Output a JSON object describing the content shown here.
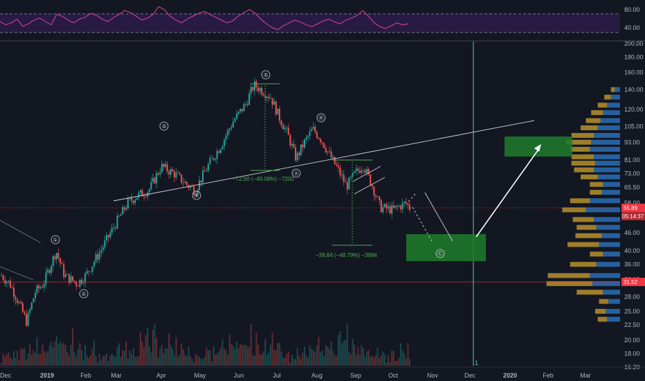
{
  "colors": {
    "background": "#131722",
    "up": "#26a69a",
    "down": "#ef5350",
    "rsi_line": "#e040a0",
    "rsi_band": "#3b1f5e",
    "volume_profile_up": "#2a6fb5",
    "volume_profile_down": "#b8902a",
    "target_box": "#1e7d2b",
    "annotation_text": "#4caf50",
    "price_tag": "#f23645"
  },
  "chart_data": [
    {
      "type": "line",
      "panel": "rsi",
      "y_ticks": [
        "80.00",
        "40.00"
      ],
      "levels": [
        70,
        30
      ],
      "ylim": [
        20,
        90
      ],
      "values": [
        55,
        48,
        52,
        60,
        45,
        50,
        58,
        62,
        55,
        48,
        70,
        66,
        58,
        52,
        60,
        64,
        72,
        68,
        60,
        55,
        63,
        70,
        78,
        74,
        66,
        58,
        62,
        70,
        86,
        80,
        66,
        58,
        52,
        60,
        66,
        72,
        76,
        70,
        64,
        58,
        52,
        56,
        66,
        74,
        80,
        72,
        60,
        50,
        42,
        38,
        46,
        52,
        58,
        54,
        48,
        44,
        50,
        56,
        60,
        54,
        50,
        58,
        62,
        68,
        78,
        66,
        52,
        44,
        40,
        46,
        52,
        48,
        50
      ]
    },
    {
      "type": "candlestick",
      "panel": "price",
      "scale": "log",
      "y_ticks": [
        "200.00",
        "180.00",
        "160.00",
        "140.00",
        "120.00",
        "105.00",
        "93.00",
        "81.00",
        "73.00",
        "65.50",
        "58.00",
        "52.00",
        "46.00",
        "40.00",
        "36.00",
        "32.00",
        "28.00",
        "25.00",
        "22.50",
        "20.00",
        "18.00",
        "16.20"
      ],
      "x_ticks": [
        "Dec",
        "2019",
        "Feb",
        "Mar",
        "Apr",
        "May",
        "Jun",
        "Jul",
        "Aug",
        "Sep",
        "Oct",
        "Nov",
        "Dec",
        "2020",
        "Feb",
        "Mar"
      ],
      "close_path": [
        [
          0,
          33
        ],
        [
          2,
          31
        ],
        [
          4,
          27
        ],
        [
          6,
          23
        ],
        [
          8,
          29
        ],
        [
          10,
          31
        ],
        [
          13,
          40
        ],
        [
          15,
          33
        ],
        [
          18,
          31
        ],
        [
          20,
          33
        ],
        [
          24,
          41
        ],
        [
          27,
          49
        ],
        [
          30,
          58
        ],
        [
          32,
          61
        ],
        [
          35,
          64
        ],
        [
          38,
          77
        ],
        [
          41,
          73
        ],
        [
          44,
          67
        ],
        [
          46,
          64
        ],
        [
          49,
          77
        ],
        [
          52,
          90
        ],
        [
          55,
          109
        ],
        [
          58,
          125
        ],
        [
          60,
          145
        ],
        [
          62,
          139
        ],
        [
          64,
          132
        ],
        [
          66,
          113
        ],
        [
          68,
          99
        ],
        [
          70,
          82
        ],
        [
          72,
          93
        ],
        [
          74,
          103
        ],
        [
          76,
          95
        ],
        [
          78,
          84
        ],
        [
          80,
          75
        ],
        [
          82,
          66
        ],
        [
          84,
          73
        ],
        [
          86,
          78
        ],
        [
          88,
          67
        ],
        [
          90,
          56
        ],
        [
          93,
          55
        ],
        [
          96,
          58
        ],
        [
          97,
          55.89
        ]
      ],
      "current_price": "55.89",
      "countdown": "05:14:37",
      "support_level": "31.52",
      "wave_labels": [
        "①",
        "②",
        "③",
        "④",
        "⑤",
        "Ⓐ",
        "Ⓑ",
        "Ⓒ"
      ],
      "annotations": [
        {
          "text": "−72.00 (−49.08%) −7200"
        },
        {
          "text": "−39.84 (−48.79%) −3984"
        }
      ],
      "target_zones": [
        "Ⓒ"
      ],
      "vertical_marker_label": "1"
    },
    {
      "type": "bar",
      "panel": "volume",
      "values": [
        3,
        5,
        4,
        6,
        8,
        5,
        4,
        7,
        9,
        6,
        5,
        8,
        10,
        7,
        6,
        9,
        12,
        8,
        7,
        10,
        14,
        9,
        8,
        11,
        16,
        10,
        9,
        12,
        18,
        11,
        10,
        14,
        22,
        12,
        9,
        13,
        20,
        11,
        8,
        12,
        15,
        9,
        7,
        10,
        13,
        8,
        6,
        9,
        11,
        7,
        5,
        8,
        10,
        6
      ]
    },
    {
      "type": "bar",
      "panel": "volume_profile",
      "orientation": "horizontal",
      "bins": [
        {
          "price": 140,
          "up": 8,
          "down": 6
        },
        {
          "price": 132,
          "up": 14,
          "down": 10
        },
        {
          "price": 124,
          "up": 20,
          "down": 14
        },
        {
          "price": 117,
          "up": 26,
          "down": 18
        },
        {
          "price": 110,
          "up": 30,
          "down": 22
        },
        {
          "price": 104,
          "up": 34,
          "down": 26
        },
        {
          "price": 98,
          "up": 40,
          "down": 34
        },
        {
          "price": 93,
          "up": 44,
          "down": 38
        },
        {
          "price": 88,
          "up": 46,
          "down": 30
        },
        {
          "price": 83,
          "up": 40,
          "down": 34
        },
        {
          "price": 79,
          "up": 38,
          "down": 36
        },
        {
          "price": 75,
          "up": 40,
          "down": 30
        },
        {
          "price": 71,
          "up": 34,
          "down": 26
        },
        {
          "price": 67,
          "up": 26,
          "down": 20
        },
        {
          "price": 63,
          "up": 28,
          "down": 18
        },
        {
          "price": 59,
          "up": 46,
          "down": 30
        },
        {
          "price": 55,
          "up": 52,
          "down": 36
        },
        {
          "price": 51,
          "up": 40,
          "down": 32
        },
        {
          "price": 48,
          "up": 36,
          "down": 30
        },
        {
          "price": 45,
          "up": 28,
          "down": 40
        },
        {
          "price": 42,
          "up": 32,
          "down": 48
        },
        {
          "price": 39,
          "up": 26,
          "down": 20
        },
        {
          "price": 36,
          "up": 36,
          "down": 40
        },
        {
          "price": 33,
          "up": 46,
          "down": 64
        },
        {
          "price": 31,
          "up": 42,
          "down": 70
        },
        {
          "price": 29,
          "up": 26,
          "down": 40
        },
        {
          "price": 27,
          "up": 18,
          "down": 14
        },
        {
          "price": 25,
          "up": 22,
          "down": 16
        },
        {
          "price": 23.5,
          "up": 20,
          "down": 14
        }
      ]
    }
  ]
}
